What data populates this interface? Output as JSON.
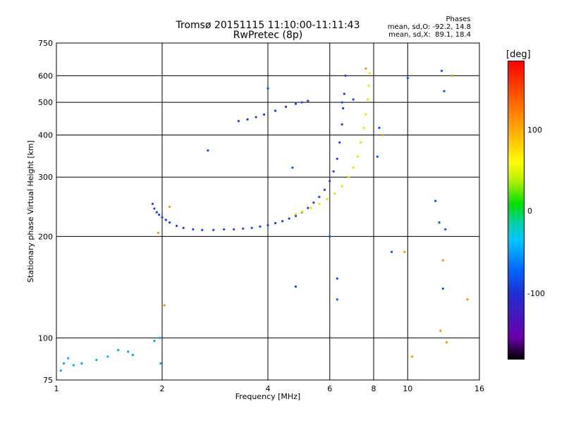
{
  "chart_data": {
    "type": "scatter",
    "title": "Tromsø 20151115 11:10:00-11:11:43",
    "subtitle": "RwPretec (8p)",
    "xlabel": "Frequency [MHz]",
    "ylabel": "Stationary phase Virtual Height [km]",
    "x_scale": "log",
    "y_scale": "log",
    "xlim": [
      1,
      16
    ],
    "ylim": [
      75,
      750
    ],
    "x_ticks": [
      1,
      2,
      4,
      6,
      8,
      10,
      16
    ],
    "y_ticks": [
      75,
      100,
      200,
      300,
      400,
      500,
      600,
      750
    ],
    "grid": true,
    "stats": {
      "heading": "Phases",
      "o_line": "mean, sd,O: -92.2, 14.8",
      "x_line": "mean, sd,X:  89.1, 18.4"
    },
    "colorbar": {
      "label": "[deg]",
      "ticks": [
        "100",
        "0",
        "-100"
      ],
      "range": [
        -180,
        180
      ]
    },
    "series": [
      {
        "trace": "o-mode",
        "color": "#1f3fd8",
        "points": [
          [
            1.88,
            250
          ],
          [
            1.9,
            242
          ],
          [
            1.93,
            236
          ],
          [
            1.96,
            232
          ],
          [
            2.0,
            228
          ],
          [
            2.05,
            224
          ],
          [
            2.1,
            220
          ],
          [
            2.2,
            215
          ],
          [
            2.3,
            212
          ],
          [
            2.45,
            210
          ],
          [
            2.6,
            209
          ],
          [
            2.8,
            209
          ],
          [
            3.0,
            210
          ],
          [
            3.2,
            210
          ],
          [
            3.4,
            211
          ],
          [
            3.6,
            212
          ],
          [
            3.8,
            214
          ],
          [
            4.0,
            216
          ],
          [
            4.2,
            219
          ],
          [
            4.4,
            222
          ],
          [
            4.6,
            226
          ],
          [
            4.8,
            230
          ],
          [
            5.0,
            236
          ],
          [
            5.2,
            243
          ],
          [
            5.4,
            252
          ],
          [
            5.6,
            262
          ],
          [
            5.8,
            275
          ],
          [
            6.0,
            292
          ],
          [
            6.15,
            312
          ],
          [
            6.3,
            340
          ],
          [
            6.4,
            380
          ],
          [
            6.5,
            430
          ],
          [
            6.55,
            480
          ],
          [
            6.6,
            530
          ],
          [
            6.65,
            600
          ],
          [
            3.3,
            440
          ],
          [
            3.5,
            445
          ],
          [
            3.7,
            452
          ],
          [
            3.9,
            460
          ],
          [
            4.2,
            472
          ],
          [
            4.5,
            485
          ],
          [
            4.8,
            495
          ],
          [
            5.0,
            500
          ],
          [
            5.2,
            505
          ]
        ]
      },
      {
        "trace": "x-mode",
        "color": "#f0e000",
        "points": [
          [
            4.8,
            233
          ],
          [
            5.0,
            237
          ],
          [
            5.3,
            243
          ],
          [
            5.6,
            250
          ],
          [
            5.9,
            258
          ],
          [
            6.2,
            268
          ],
          [
            6.5,
            282
          ],
          [
            6.8,
            300
          ],
          [
            7.0,
            320
          ],
          [
            7.2,
            345
          ],
          [
            7.35,
            380
          ],
          [
            7.5,
            420
          ],
          [
            7.6,
            460
          ],
          [
            7.7,
            510
          ],
          [
            7.75,
            560
          ],
          [
            7.8,
            610
          ]
        ]
      },
      {
        "trace": "scatter-o",
        "color": "#0a50f0",
        "points": [
          [
            2.7,
            360
          ],
          [
            4.0,
            550
          ],
          [
            4.7,
            320
          ],
          [
            4.8,
            142
          ],
          [
            6.0,
            200
          ],
          [
            6.3,
            150
          ],
          [
            6.3,
            130
          ],
          [
            6.5,
            500
          ],
          [
            7.0,
            510
          ],
          [
            8.2,
            345
          ],
          [
            8.3,
            420
          ],
          [
            9.0,
            180
          ],
          [
            10.0,
            590
          ],
          [
            12.0,
            255
          ],
          [
            12.3,
            220
          ],
          [
            12.5,
            620
          ],
          [
            12.6,
            140
          ],
          [
            12.7,
            540
          ],
          [
            12.8,
            210
          ]
        ]
      },
      {
        "trace": "scatter-x",
        "color": "#ff8c00",
        "points": [
          [
            2.1,
            245
          ],
          [
            1.95,
            205
          ],
          [
            2.03,
            125
          ],
          [
            7.6,
            630
          ],
          [
            8.5,
            400
          ],
          [
            9.8,
            180
          ],
          [
            10.3,
            88
          ],
          [
            12.4,
            105
          ],
          [
            12.6,
            170
          ],
          [
            12.9,
            97
          ],
          [
            13.4,
            600
          ],
          [
            14.8,
            130
          ]
        ]
      },
      {
        "trace": "low-layer",
        "color": "#00b0d8",
        "points": [
          [
            1.03,
            80
          ],
          [
            1.05,
            84
          ],
          [
            1.08,
            87
          ],
          [
            1.12,
            83
          ],
          [
            1.18,
            84
          ],
          [
            1.3,
            86
          ],
          [
            1.4,
            88
          ],
          [
            1.5,
            92
          ],
          [
            1.6,
            91
          ],
          [
            1.65,
            89
          ],
          [
            1.9,
            98
          ],
          [
            1.97,
            100
          ],
          [
            1.98,
            84
          ]
        ]
      }
    ]
  }
}
